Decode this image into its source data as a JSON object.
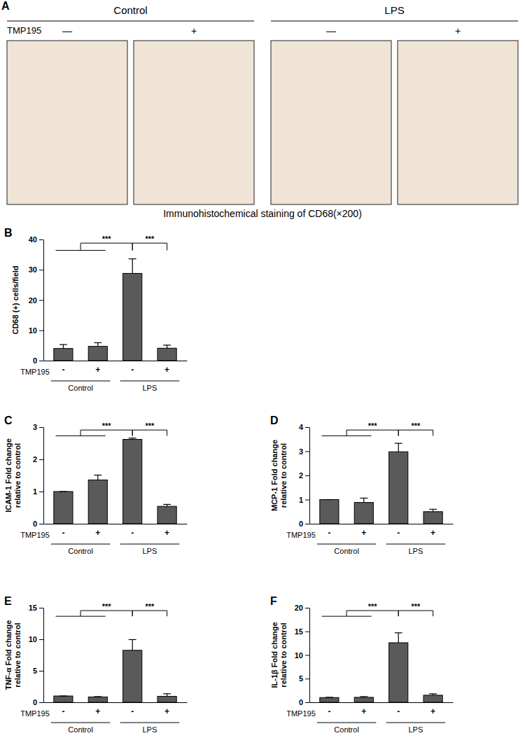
{
  "panel_a": {
    "panel": "A",
    "groups": [
      "Control",
      "LPS"
    ],
    "row_label": "TMP195",
    "treatments": [
      "—",
      "+",
      "—",
      "+"
    ],
    "caption": "Immunohistochemical staining of CD68(×200)"
  },
  "chart_data": [
    {
      "panel": "B",
      "type": "bar",
      "y_label": [
        "CD68 (+) cells/field"
      ],
      "categories": [
        "-",
        "+",
        "-",
        "+"
      ],
      "row_label": "TMP195",
      "groups": [
        "Control",
        "LPS"
      ],
      "values": [
        4.0,
        4.7,
        28.8,
        4.1
      ],
      "errors": [
        1.3,
        1.2,
        4.8,
        1.0
      ],
      "color": "#5a5a5a",
      "ylim": [
        0,
        40
      ],
      "yticks": [
        0,
        10,
        20,
        30,
        40
      ],
      "significance": [
        {
          "label": "***",
          "from": [
            0,
            1
          ],
          "to": [
            2
          ]
        },
        {
          "label": "***",
          "from": [
            2
          ],
          "to": [
            3
          ]
        }
      ]
    },
    {
      "panel": "C",
      "type": "bar",
      "y_label": [
        "ICAM-1 Fold change",
        "relative to control"
      ],
      "categories": [
        "-",
        "+",
        "-",
        "+"
      ],
      "row_label": "TMP195",
      "groups": [
        "Control",
        "LPS"
      ],
      "values": [
        1.0,
        1.36,
        2.62,
        0.54
      ],
      "errors": [
        0,
        0.15,
        0.04,
        0.06
      ],
      "color": "#5a5a5a",
      "ylim": [
        0,
        3
      ],
      "yticks": [
        0,
        1,
        2,
        3
      ],
      "significance": [
        {
          "label": "***",
          "from": [
            0,
            1
          ],
          "to": [
            2
          ]
        },
        {
          "label": "***",
          "from": [
            2
          ],
          "to": [
            3
          ]
        }
      ]
    },
    {
      "panel": "D",
      "type": "bar",
      "y_label": [
        "MCP-1 Fold change",
        "relative to control"
      ],
      "categories": [
        "-",
        "+",
        "-",
        "+"
      ],
      "row_label": "TMP195",
      "groups": [
        "Control",
        "LPS"
      ],
      "values": [
        1.0,
        0.88,
        2.98,
        0.5
      ],
      "errors": [
        0,
        0.18,
        0.35,
        0.1
      ],
      "color": "#5a5a5a",
      "ylim": [
        0,
        4
      ],
      "yticks": [
        0,
        1,
        2,
        3,
        4
      ],
      "significance": [
        {
          "label": "***",
          "from": [
            0,
            1
          ],
          "to": [
            2
          ]
        },
        {
          "label": "***",
          "from": [
            2
          ],
          "to": [
            3
          ]
        }
      ]
    },
    {
      "panel": "E",
      "type": "bar",
      "y_label": [
        "TNF-α Fold change",
        "relative to control"
      ],
      "categories": [
        "-",
        "+",
        "-",
        "+"
      ],
      "row_label": "TMP195",
      "groups": [
        "Control",
        "LPS"
      ],
      "values": [
        1.0,
        0.85,
        8.25,
        0.95
      ],
      "errors": [
        0,
        0.05,
        1.7,
        0.4
      ],
      "color": "#5a5a5a",
      "ylim": [
        0,
        15
      ],
      "yticks": [
        0,
        5,
        10,
        15
      ],
      "significance": [
        {
          "label": "***",
          "from": [
            0,
            1
          ],
          "to": [
            2
          ]
        },
        {
          "label": "***",
          "from": [
            2
          ],
          "to": [
            3
          ]
        }
      ]
    },
    {
      "panel": "F",
      "type": "bar",
      "y_label": [
        "IL-1β Fold change",
        "relative to control"
      ],
      "categories": [
        "-",
        "+",
        "-",
        "+"
      ],
      "row_label": "TMP195",
      "groups": [
        "Control",
        "LPS"
      ],
      "values": [
        1.0,
        1.05,
        12.6,
        1.5
      ],
      "errors": [
        0.05,
        0.15,
        2.1,
        0.3
      ],
      "color": "#5a5a5a",
      "ylim": [
        0,
        20
      ],
      "yticks": [
        0,
        5,
        10,
        15,
        20
      ],
      "significance": [
        {
          "label": "***",
          "from": [
            0,
            1
          ],
          "to": [
            2
          ]
        },
        {
          "label": "***",
          "from": [
            2
          ],
          "to": [
            3
          ]
        }
      ]
    }
  ]
}
